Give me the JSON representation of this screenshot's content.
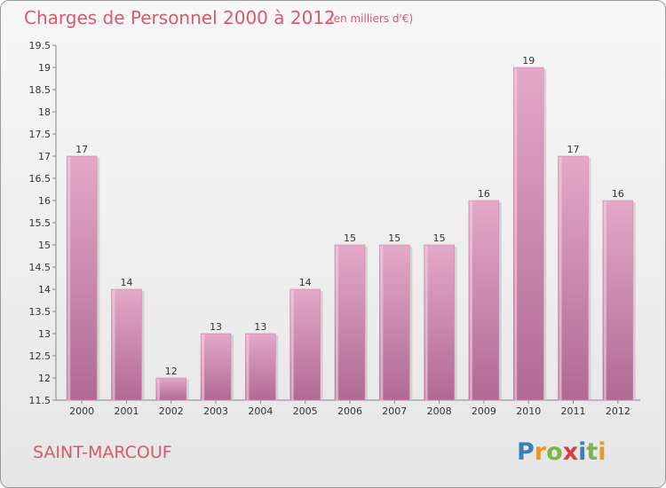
{
  "title": "Charges de Personnel 2000 à 2012",
  "subtitle": "(en milliers d'€)",
  "place": "SAINT-MARCOUF",
  "logo": {
    "text": "Proxiti",
    "colors": [
      "#3a7fc4",
      "#e39a2b",
      "#7ab648",
      "#d93f3f",
      "#3a7fc4",
      "#7ab648",
      "#e39a2b"
    ]
  },
  "colors": {
    "bar": "#d47fab",
    "bar_light": "#e4a8c8",
    "bar_dark": "#b06a92",
    "title": "#d55a6f"
  },
  "chart_data": {
    "type": "bar",
    "categories": [
      "2000",
      "2001",
      "2002",
      "2003",
      "2004",
      "2005",
      "2006",
      "2007",
      "2008",
      "2009",
      "2010",
      "2011",
      "2012"
    ],
    "values": [
      17,
      14,
      12,
      13,
      13,
      14,
      15,
      15,
      15,
      16,
      19,
      17,
      16
    ],
    "data_labels": [
      "17",
      "14",
      "12",
      "13",
      "13",
      "14",
      "15",
      "15",
      "15",
      "16",
      "19",
      "17",
      "16"
    ],
    "ylim": [
      11.5,
      19.5
    ],
    "y_ticks": [
      "11.5",
      "12",
      "12.5",
      "13",
      "13.5",
      "14",
      "14.5",
      "15",
      "15.5",
      "16",
      "16.5",
      "17",
      "17.5",
      "18",
      "18.5",
      "19",
      "19.5"
    ],
    "grid": false,
    "xlabel": "",
    "ylabel": ""
  }
}
